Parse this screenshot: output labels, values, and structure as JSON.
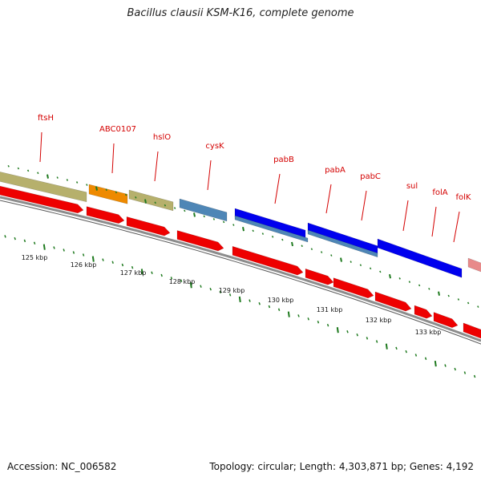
{
  "header": {
    "title": "Bacillus clausii KSM-K16, complete genome"
  },
  "footer": {
    "accession": "Accession: NC_006582",
    "stats": "Topology: circular; Length: 4,303,871 bp; Genes: 4,192"
  },
  "colors": {
    "cds": "#ee0000",
    "backbone": "#8c8c8c",
    "tick": "#1f7a1f",
    "label": "#d40000",
    "olive": "#b6b06c",
    "orange": "#ee8a00",
    "steelblue": "#4e86b6",
    "blue": "#0000ee",
    "pink": "#e88a8a"
  },
  "genes": [
    "ftsH",
    "ABC0107",
    "hslO",
    "cysK",
    "pabB",
    "pabA",
    "pabC",
    "sul",
    "folA",
    "folK"
  ],
  "axis_labels": [
    "125 kbp",
    "126 kbp",
    "127 kbp",
    "128 kbp",
    "129 kbp",
    "130 kbp",
    "131 kbp",
    "132 kbp",
    "133 kbp"
  ]
}
